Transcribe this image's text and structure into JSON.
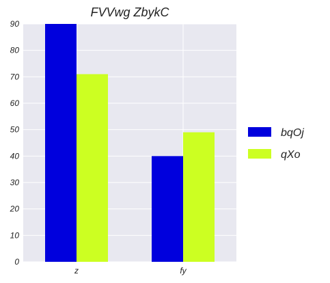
{
  "chart_data": {
    "type": "bar",
    "title": "FVVwg ZbykC",
    "xlabel": "",
    "ylabel": "",
    "categories": [
      "z",
      "fy"
    ],
    "series": [
      {
        "name": "bqOj",
        "values": [
          90,
          40
        ],
        "color": "#0000dd"
      },
      {
        "name": "qXo",
        "values": [
          71,
          49
        ],
        "color": "#ccff22"
      }
    ],
    "ylim": [
      0,
      90
    ],
    "yticks": [
      0,
      10,
      20,
      30,
      40,
      50,
      60,
      70,
      80,
      90
    ],
    "grid": true,
    "legend_position": "right",
    "background": "#e8e8f0"
  }
}
